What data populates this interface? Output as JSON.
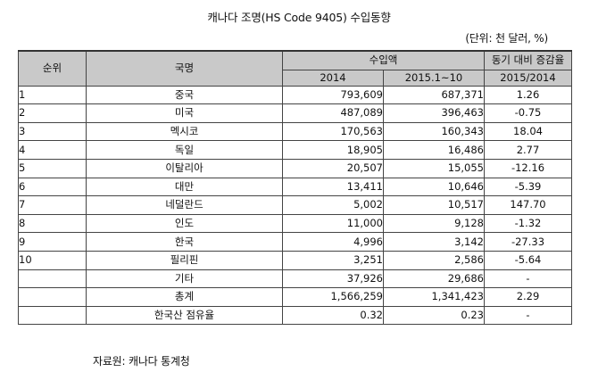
{
  "title": "캐나다 조명(HS Code 9405) 수입동향",
  "unit_note": "(단위: 천 달러, %)",
  "headers": {
    "rank": "순위",
    "country": "국명",
    "import_value": "수입액",
    "yoy_change": "동기 대비 증감율",
    "year_2014": "2014",
    "period_2015": "2015.1~10",
    "period_change": "2015/2014"
  },
  "rows": [
    {
      "rank": "1",
      "country": "중국",
      "v2014": "793,609",
      "v2015": "687,371",
      "change": "1.26"
    },
    {
      "rank": "2",
      "country": "미국",
      "v2014": "487,089",
      "v2015": "396,463",
      "change": "-0.75"
    },
    {
      "rank": "3",
      "country": "멕시코",
      "v2014": "170,563",
      "v2015": "160,343",
      "change": "18.04"
    },
    {
      "rank": "4",
      "country": "독일",
      "v2014": "18,905",
      "v2015": "16,486",
      "change": "2.77"
    },
    {
      "rank": "5",
      "country": "이탈리아",
      "v2014": "20,507",
      "v2015": "15,055",
      "change": "-12.16"
    },
    {
      "rank": "6",
      "country": "대만",
      "v2014": "13,411",
      "v2015": "10,646",
      "change": "-5.39"
    },
    {
      "rank": "7",
      "country": "네덜란드",
      "v2014": "5,002",
      "v2015": "10,517",
      "change": "147.70"
    },
    {
      "rank": "8",
      "country": "인도",
      "v2014": "11,000",
      "v2015": "9,128",
      "change": "-1.32"
    },
    {
      "rank": "9",
      "country": "한국",
      "v2014": "4,996",
      "v2015": "3,142",
      "change": "-27.33"
    },
    {
      "rank": "10",
      "country": "필리핀",
      "v2014": "3,251",
      "v2015": "2,586",
      "change": "-5.64"
    },
    {
      "rank": "",
      "country": "기타",
      "v2014": "37,926",
      "v2015": "29,686",
      "change": "-"
    },
    {
      "rank": "",
      "country": "총계",
      "v2014": "1,566,259",
      "v2015": "1,341,423",
      "change": "2.29"
    },
    {
      "rank": "",
      "country": "한국산 점유율",
      "v2014": "0.32",
      "v2015": "0.23",
      "change": "-"
    }
  ],
  "source": "자료원: 캐나다 통계청"
}
